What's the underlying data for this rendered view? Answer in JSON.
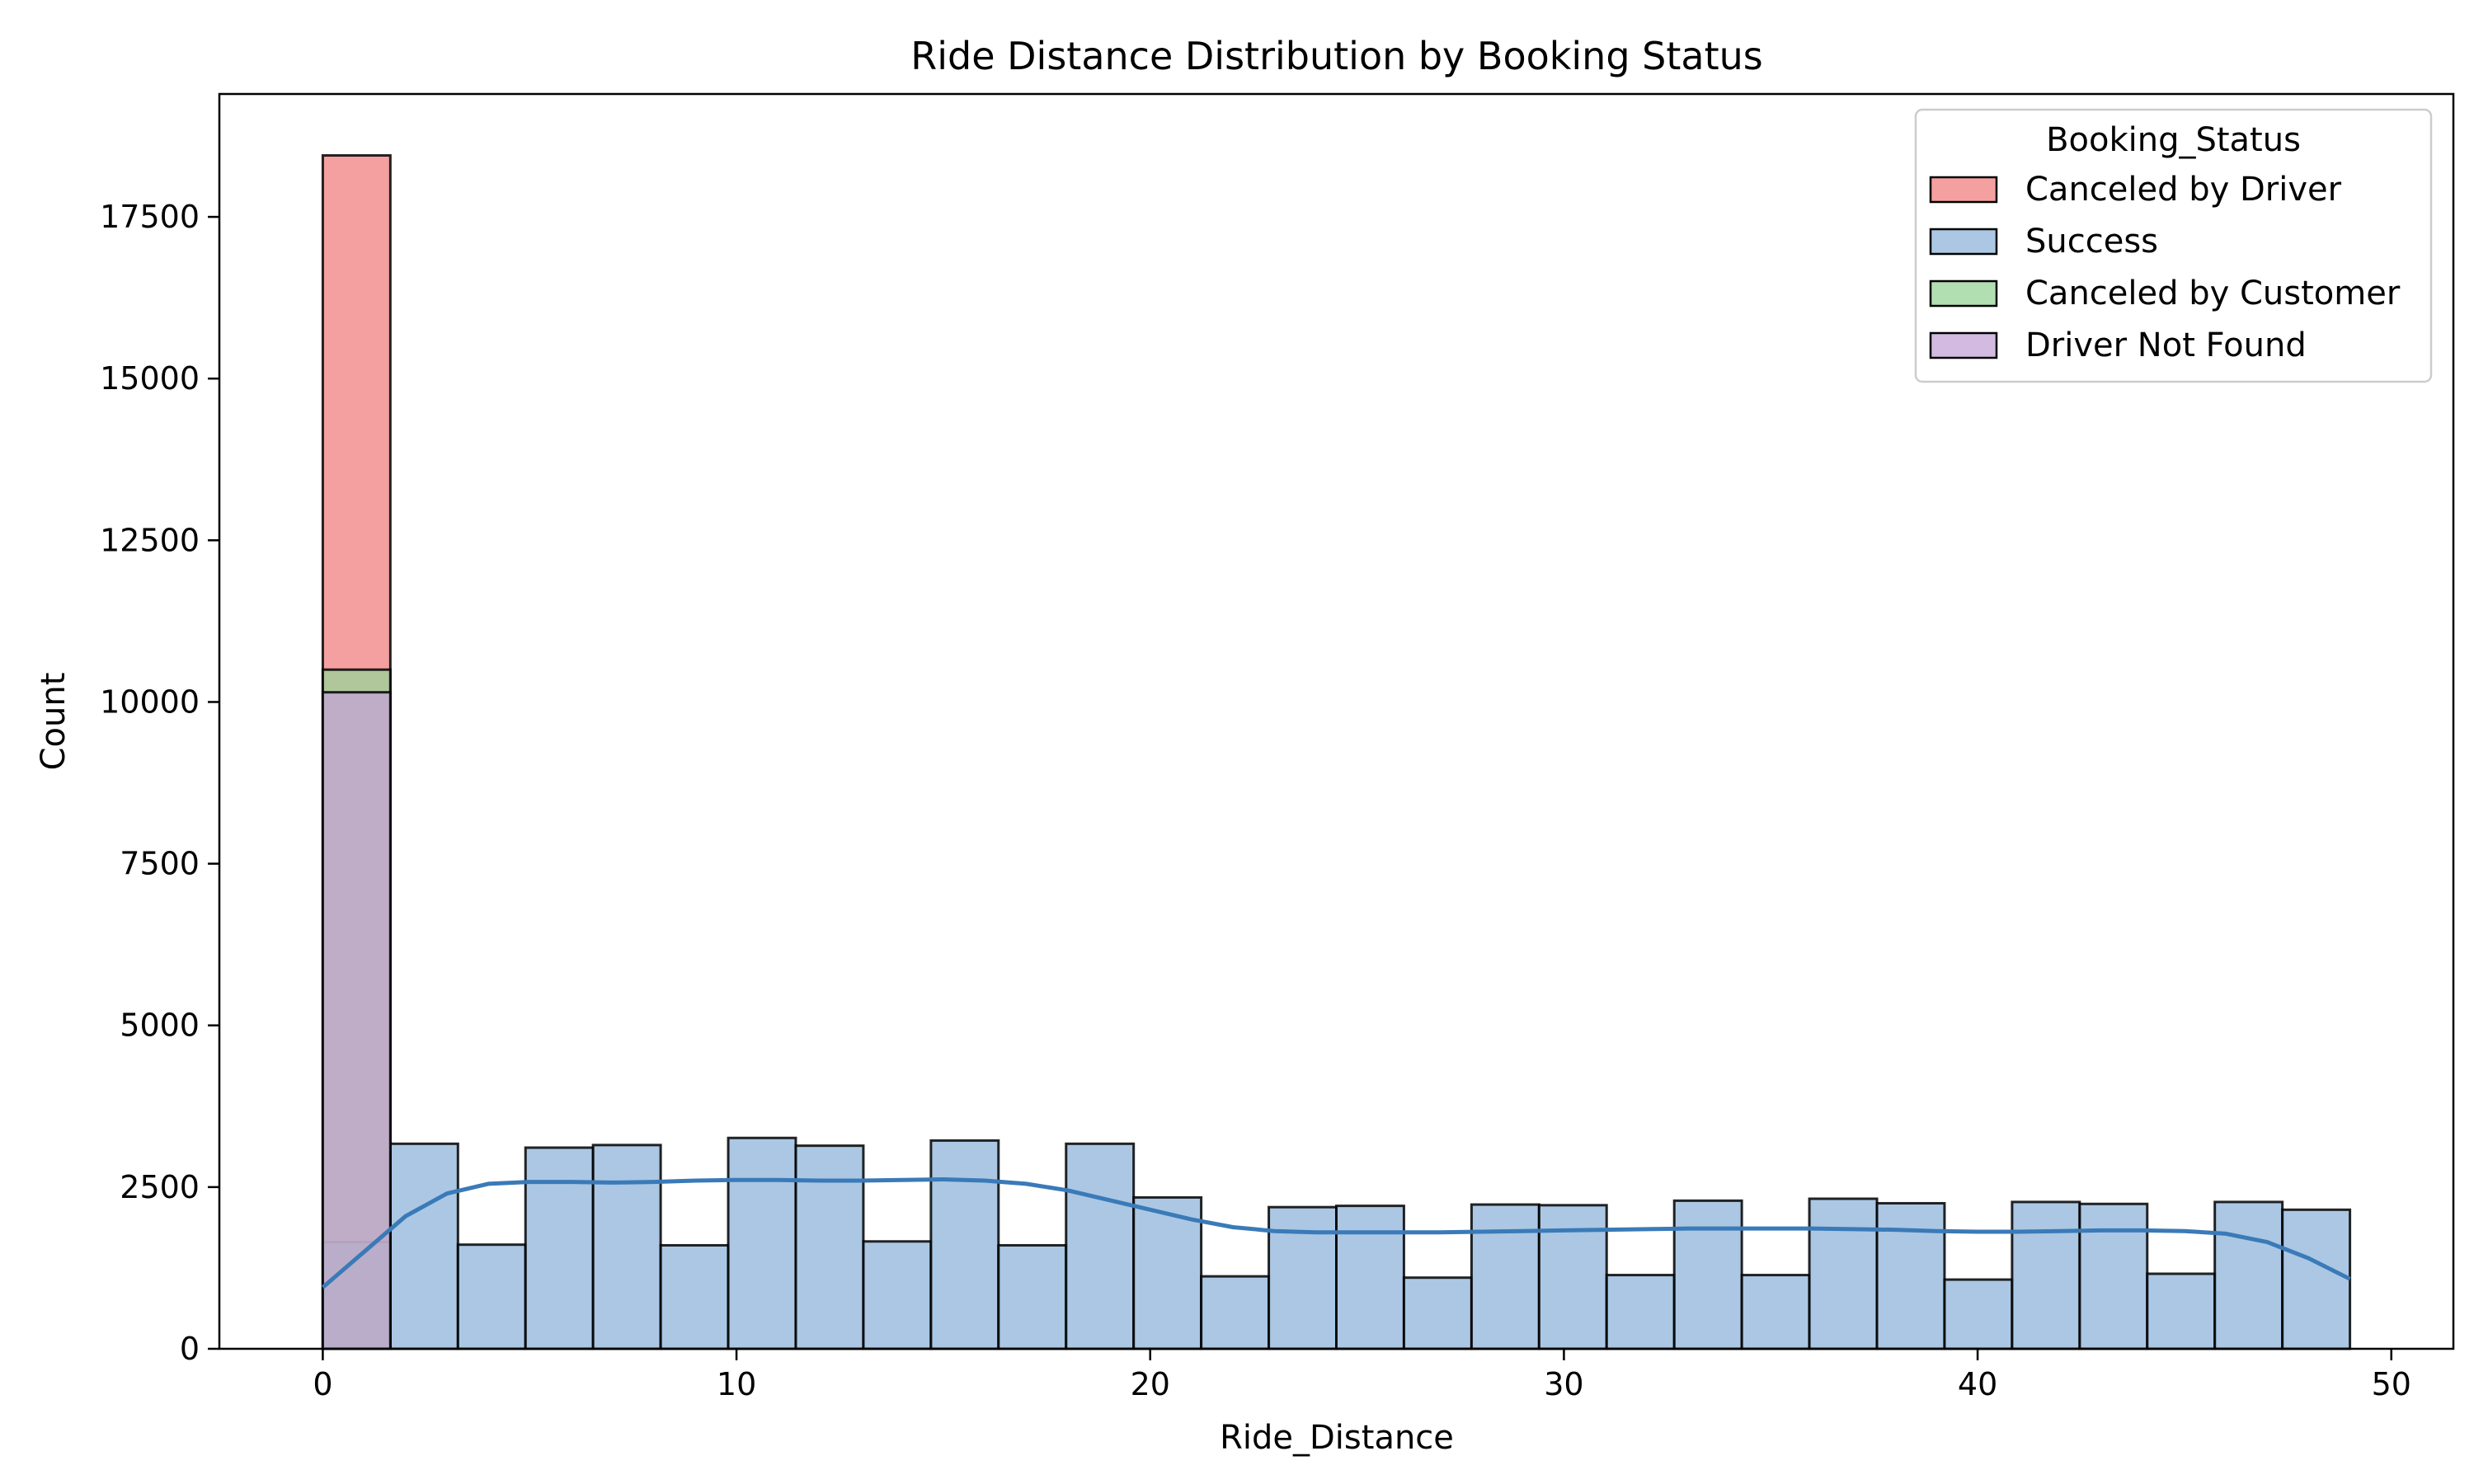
{
  "chart_data": {
    "type": "bar",
    "title": "Ride Distance Distribution by Booking Status",
    "xlabel": "Ride_Distance",
    "ylabel": "Count",
    "xlim": [
      -2.5,
      51.5
    ],
    "ylim": [
      0,
      19400
    ],
    "xticks": [
      0,
      10,
      20,
      30,
      40,
      50
    ],
    "yticks": [
      0,
      2500,
      5000,
      7500,
      10000,
      12500,
      15000,
      17500
    ],
    "grid": false,
    "legend": {
      "title": "Booking_Status",
      "placement": "top-right",
      "entries": [
        "Canceled by Driver",
        "Success",
        "Canceled by Customer",
        "Driver Not Found"
      ]
    },
    "bin_edges": [
      0.0,
      1.633,
      3.267,
      4.9,
      6.533,
      8.167,
      9.8,
      11.433,
      13.067,
      14.7,
      16.333,
      17.967,
      19.6,
      21.233,
      22.867,
      24.5,
      26.133,
      27.767,
      29.4,
      31.033,
      32.667,
      34.3,
      35.933,
      37.567,
      39.2,
      40.833,
      42.467,
      44.1,
      45.733,
      47.367,
      49.0
    ],
    "series": [
      {
        "name": "Canceled by Driver",
        "color": "#f08080",
        "values": [
          18450,
          0,
          0,
          0,
          0,
          0,
          0,
          0,
          0,
          0,
          0,
          0,
          0,
          0,
          0,
          0,
          0,
          0,
          0,
          0,
          0,
          0,
          0,
          0,
          0,
          0,
          0,
          0,
          0,
          0
        ]
      },
      {
        "name": "Success",
        "color": "#8fb4d9",
        "values": [
          1650,
          3170,
          1610,
          3110,
          3150,
          1600,
          3260,
          3140,
          1660,
          3220,
          1600,
          3170,
          2340,
          1120,
          2190,
          2210,
          1100,
          2230,
          2220,
          1140,
          2290,
          1140,
          2320,
          2250,
          1070,
          2270,
          2240,
          1160,
          2270,
          2150
        ]
      },
      {
        "name": "Canceled by Customer",
        "color": "#98d498",
        "values": [
          10500,
          0,
          0,
          0,
          0,
          0,
          0,
          0,
          0,
          0,
          0,
          0,
          0,
          0,
          0,
          0,
          0,
          0,
          0,
          0,
          0,
          0,
          0,
          0,
          0,
          0,
          0,
          0,
          0,
          0
        ]
      },
      {
        "name": "Driver Not Found",
        "color": "#c4a3d6",
        "values": [
          10150,
          0,
          0,
          0,
          0,
          0,
          0,
          0,
          0,
          0,
          0,
          0,
          0,
          0,
          0,
          0,
          0,
          0,
          0,
          0,
          0,
          0,
          0,
          0,
          0,
          0,
          0,
          0,
          0,
          0
        ]
      }
    ],
    "kde": {
      "series": "Success",
      "color": "#3a7ab8",
      "x": [
        0,
        1,
        2,
        3,
        4,
        5,
        6,
        7,
        8,
        9,
        10,
        11,
        12,
        13,
        14,
        15,
        16,
        17,
        18,
        19,
        20,
        21,
        22,
        23,
        24,
        25,
        26,
        27,
        28,
        29,
        30,
        31,
        32,
        33,
        34,
        35,
        36,
        37,
        38,
        39,
        40,
        41,
        42,
        43,
        44,
        45,
        46,
        47,
        48,
        49
      ],
      "y": [
        950,
        1500,
        2050,
        2400,
        2550,
        2580,
        2580,
        2570,
        2580,
        2600,
        2610,
        2610,
        2600,
        2600,
        2610,
        2620,
        2600,
        2550,
        2450,
        2300,
        2150,
        2000,
        1880,
        1820,
        1800,
        1800,
        1800,
        1800,
        1810,
        1820,
        1830,
        1840,
        1850,
        1860,
        1860,
        1860,
        1860,
        1850,
        1840,
        1820,
        1810,
        1810,
        1820,
        1830,
        1830,
        1820,
        1780,
        1650,
        1400,
        1080
      ]
    }
  }
}
